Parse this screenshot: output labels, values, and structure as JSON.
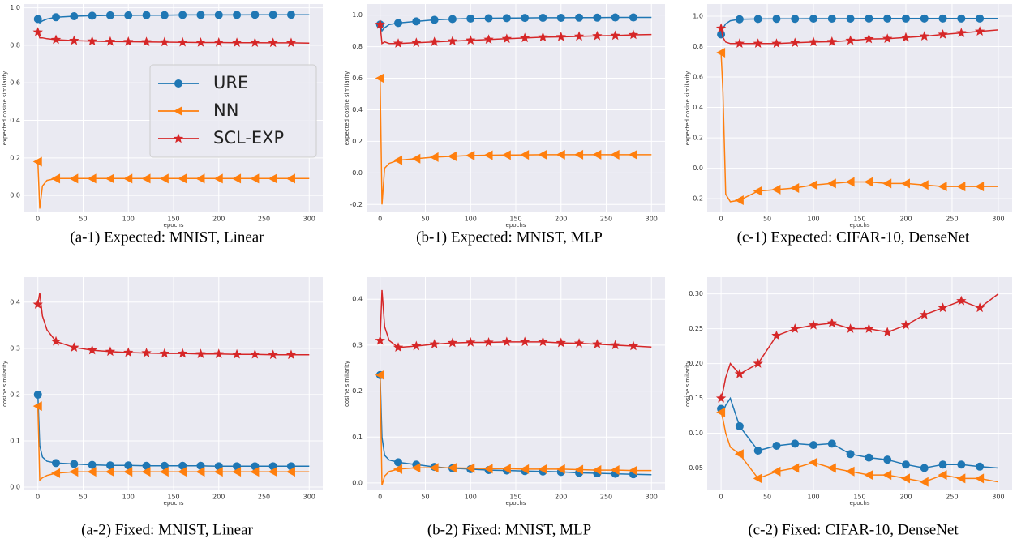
{
  "chart_data": [
    {
      "type": "line",
      "caption": "(a-1) Expected: MNIST, Linear",
      "xlabel": "epochs",
      "ylabel": "expected cosine similarity",
      "xlim": [
        -15,
        315
      ],
      "xticks": [
        0,
        50,
        100,
        150,
        200,
        250,
        300
      ],
      "ylim": [
        -0.09,
        1.02
      ],
      "yticks": [
        {
          "value": 0,
          "label": "0.0"
        },
        0.2,
        0.4,
        0.6,
        0.8,
        {
          "value": 1,
          "label": "1.0"
        }
      ],
      "grid": true,
      "legend": "center right",
      "x": [
        0,
        2,
        5,
        10,
        20,
        40,
        60,
        80,
        100,
        120,
        140,
        160,
        180,
        200,
        220,
        240,
        260,
        280,
        300
      ],
      "series": [
        {
          "name": "URE",
          "color": "#1f77b4",
          "marker": "circle",
          "values": [
            0.94,
            0.92,
            0.93,
            0.94,
            0.95,
            0.955,
            0.958,
            0.96,
            0.96,
            0.961,
            0.961,
            0.962,
            0.962,
            0.962,
            0.962,
            0.963,
            0.963,
            0.963,
            0.963
          ]
        },
        {
          "name": "NN",
          "color": "#ff7f0e",
          "marker": "triangle-left",
          "values": [
            0.18,
            -0.07,
            0.05,
            0.08,
            0.09,
            0.09,
            0.09,
            0.09,
            0.09,
            0.09,
            0.09,
            0.09,
            0.09,
            0.09,
            0.09,
            0.09,
            0.09,
            0.09,
            0.09
          ]
        },
        {
          "name": "SCL-EXP",
          "color": "#d62728",
          "marker": "star",
          "values": [
            0.87,
            0.84,
            0.84,
            0.835,
            0.83,
            0.825,
            0.822,
            0.82,
            0.819,
            0.818,
            0.817,
            0.816,
            0.815,
            0.815,
            0.814,
            0.814,
            0.813,
            0.813,
            0.812
          ]
        }
      ]
    },
    {
      "type": "line",
      "caption": "(b-1) Expected: MNIST, MLP",
      "xlabel": "epochs",
      "ylabel": "expected cosine similarity",
      "xlim": [
        -15,
        315
      ],
      "xticks": [
        0,
        50,
        100,
        150,
        200,
        250,
        300
      ],
      "ylim": [
        -0.25,
        1.07
      ],
      "yticks": [
        -0.2,
        {
          "value": 0,
          "label": "0.0"
        },
        0.2,
        0.4,
        0.6,
        0.8,
        {
          "value": 1,
          "label": "1.0"
        }
      ],
      "grid": true,
      "x": [
        0,
        2,
        5,
        10,
        20,
        40,
        60,
        80,
        100,
        120,
        140,
        160,
        180,
        200,
        220,
        240,
        260,
        280,
        300
      ],
      "series": [
        {
          "color": "#1f77b4",
          "marker": "circle",
          "values": [
            0.94,
            0.9,
            0.92,
            0.94,
            0.95,
            0.96,
            0.97,
            0.975,
            0.978,
            0.98,
            0.981,
            0.982,
            0.983,
            0.983,
            0.984,
            0.984,
            0.985,
            0.985,
            0.985
          ]
        },
        {
          "color": "#ff7f0e",
          "marker": "triangle-left",
          "values": [
            0.6,
            -0.2,
            0.03,
            0.06,
            0.08,
            0.09,
            0.1,
            0.105,
            0.11,
            0.112,
            0.113,
            0.114,
            0.115,
            0.115,
            0.115,
            0.115,
            0.115,
            0.115,
            0.115
          ]
        },
        {
          "color": "#d62728",
          "marker": "star",
          "values": [
            0.94,
            0.82,
            0.83,
            0.82,
            0.82,
            0.825,
            0.83,
            0.835,
            0.84,
            0.845,
            0.85,
            0.855,
            0.86,
            0.862,
            0.865,
            0.868,
            0.87,
            0.875,
            0.877
          ]
        }
      ]
    },
    {
      "type": "line",
      "caption": "(c-1) Expected: CIFAR-10, DenseNet",
      "xlabel": "epochs",
      "ylabel": "expected cosine similarity",
      "xlim": [
        -15,
        315
      ],
      "xticks": [
        0,
        50,
        100,
        150,
        200,
        250,
        300
      ],
      "ylim": [
        -0.29,
        1.08
      ],
      "yticks": [
        -0.2,
        {
          "value": 0,
          "label": "0.0"
        },
        0.2,
        0.4,
        0.6,
        0.8,
        {
          "value": 1,
          "label": "1.0"
        }
      ],
      "grid": true,
      "x": [
        0,
        2,
        5,
        10,
        20,
        40,
        60,
        80,
        100,
        120,
        140,
        160,
        180,
        200,
        220,
        240,
        260,
        280,
        300
      ],
      "series": [
        {
          "color": "#1f77b4",
          "marker": "circle",
          "values": [
            0.88,
            0.92,
            0.95,
            0.97,
            0.98,
            0.982,
            0.983,
            0.983,
            0.984,
            0.984,
            0.984,
            0.985,
            0.985,
            0.985,
            0.985,
            0.985,
            0.985,
            0.985,
            0.985
          ]
        },
        {
          "color": "#ff7f0e",
          "marker": "triangle-left",
          "values": [
            0.76,
            0.5,
            -0.17,
            -0.22,
            -0.21,
            -0.15,
            -0.14,
            -0.13,
            -0.11,
            -0.1,
            -0.09,
            -0.09,
            -0.1,
            -0.1,
            -0.11,
            -0.12,
            -0.12,
            -0.12,
            -0.12
          ]
        },
        {
          "color": "#d62728",
          "marker": "star",
          "values": [
            0.92,
            0.86,
            0.83,
            0.82,
            0.82,
            0.82,
            0.82,
            0.825,
            0.83,
            0.832,
            0.84,
            0.85,
            0.852,
            0.86,
            0.868,
            0.88,
            0.89,
            0.9,
            0.91
          ]
        }
      ]
    },
    {
      "type": "line",
      "caption": "(a-2) Fixed: MNIST, Linear",
      "xlabel": "epochs",
      "ylabel": "cosine similarity",
      "xlim": [
        -15,
        315
      ],
      "xticks": [
        0,
        50,
        100,
        150,
        200,
        250,
        300
      ],
      "ylim": [
        -0.007,
        0.454
      ],
      "yticks": [
        {
          "value": 0,
          "label": "0.0"
        },
        0.1,
        0.2,
        0.3,
        0.4
      ],
      "grid": true,
      "x": [
        0,
        2,
        5,
        10,
        20,
        40,
        60,
        80,
        100,
        120,
        140,
        160,
        180,
        200,
        220,
        240,
        260,
        280,
        300
      ],
      "series": [
        {
          "color": "#1f77b4",
          "marker": "circle",
          "values": [
            0.2,
            0.09,
            0.065,
            0.056,
            0.052,
            0.05,
            0.048,
            0.047,
            0.047,
            0.046,
            0.046,
            0.046,
            0.046,
            0.045,
            0.045,
            0.045,
            0.045,
            0.045,
            0.045
          ]
        },
        {
          "color": "#ff7f0e",
          "marker": "triangle-left",
          "values": [
            0.175,
            0.015,
            0.02,
            0.025,
            0.03,
            0.033,
            0.033,
            0.033,
            0.033,
            0.033,
            0.033,
            0.033,
            0.033,
            0.033,
            0.033,
            0.033,
            0.033,
            0.033,
            0.033
          ]
        },
        {
          "color": "#d62728",
          "marker": "star",
          "values": [
            0.395,
            0.42,
            0.37,
            0.34,
            0.315,
            0.302,
            0.296,
            0.293,
            0.291,
            0.29,
            0.289,
            0.289,
            0.288,
            0.288,
            0.287,
            0.287,
            0.286,
            0.286,
            0.286
          ]
        }
      ]
    },
    {
      "type": "line",
      "caption": "(b-2) Fixed: MNIST, MLP",
      "xlabel": "epochs",
      "ylabel": "cosine similarity",
      "xlim": [
        -15,
        315
      ],
      "xticks": [
        0,
        50,
        100,
        150,
        200,
        250,
        300
      ],
      "ylim": [
        -0.016,
        0.448
      ],
      "yticks": [
        {
          "value": 0,
          "label": "0.0"
        },
        0.1,
        0.2,
        0.3,
        0.4
      ],
      "grid": true,
      "x": [
        0,
        2,
        5,
        10,
        20,
        40,
        60,
        80,
        100,
        120,
        140,
        160,
        180,
        200,
        220,
        240,
        260,
        280,
        300
      ],
      "series": [
        {
          "color": "#1f77b4",
          "marker": "circle",
          "values": [
            0.235,
            0.1,
            0.06,
            0.05,
            0.045,
            0.04,
            0.035,
            0.032,
            0.03,
            0.028,
            0.027,
            0.026,
            0.025,
            0.024,
            0.022,
            0.021,
            0.02,
            0.019,
            0.018
          ]
        },
        {
          "color": "#ff7f0e",
          "marker": "triangle-left",
          "values": [
            0.235,
            -0.005,
            0.015,
            0.025,
            0.03,
            0.033,
            0.033,
            0.033,
            0.032,
            0.031,
            0.031,
            0.03,
            0.03,
            0.03,
            0.029,
            0.028,
            0.028,
            0.027,
            0.027
          ]
        },
        {
          "color": "#d62728",
          "marker": "star",
          "values": [
            0.31,
            0.42,
            0.34,
            0.31,
            0.295,
            0.298,
            0.302,
            0.305,
            0.306,
            0.306,
            0.307,
            0.307,
            0.307,
            0.305,
            0.304,
            0.302,
            0.3,
            0.298,
            0.296
          ]
        }
      ]
    },
    {
      "type": "line",
      "caption": "(c-2) Fixed: CIFAR-10, DenseNet",
      "xlabel": "epochs",
      "ylabel": "cosine similarity",
      "xlim": [
        -15,
        315
      ],
      "xticks": [
        0,
        50,
        100,
        150,
        200,
        250,
        300
      ],
      "ylim": [
        0.018,
        0.324
      ],
      "yticks": [
        0.05,
        {
          "value": 0.1,
          "label": "0.10"
        },
        0.15,
        {
          "value": 0.2,
          "label": "0.20"
        },
        0.25,
        {
          "value": 0.3,
          "label": "0.30"
        }
      ],
      "grid": true,
      "x": [
        0,
        2,
        5,
        10,
        20,
        40,
        60,
        80,
        100,
        120,
        140,
        160,
        180,
        200,
        220,
        240,
        260,
        280,
        300
      ],
      "series": [
        {
          "color": "#1f77b4",
          "marker": "circle",
          "values": [
            0.135,
            0.13,
            0.14,
            0.15,
            0.11,
            0.075,
            0.082,
            0.085,
            0.083,
            0.085,
            0.07,
            0.065,
            0.062,
            0.055,
            0.05,
            0.055,
            0.055,
            0.052,
            0.05
          ]
        },
        {
          "color": "#ff7f0e",
          "marker": "triangle-left",
          "values": [
            0.13,
            0.12,
            0.1,
            0.08,
            0.07,
            0.035,
            0.045,
            0.05,
            0.058,
            0.05,
            0.045,
            0.04,
            0.04,
            0.035,
            0.03,
            0.04,
            0.035,
            0.035,
            0.03
          ]
        },
        {
          "color": "#d62728",
          "marker": "star",
          "values": [
            0.15,
            0.16,
            0.18,
            0.2,
            0.185,
            0.2,
            0.24,
            0.25,
            0.255,
            0.258,
            0.25,
            0.25,
            0.245,
            0.255,
            0.27,
            0.28,
            0.29,
            0.28,
            0.3
          ]
        }
      ]
    }
  ]
}
